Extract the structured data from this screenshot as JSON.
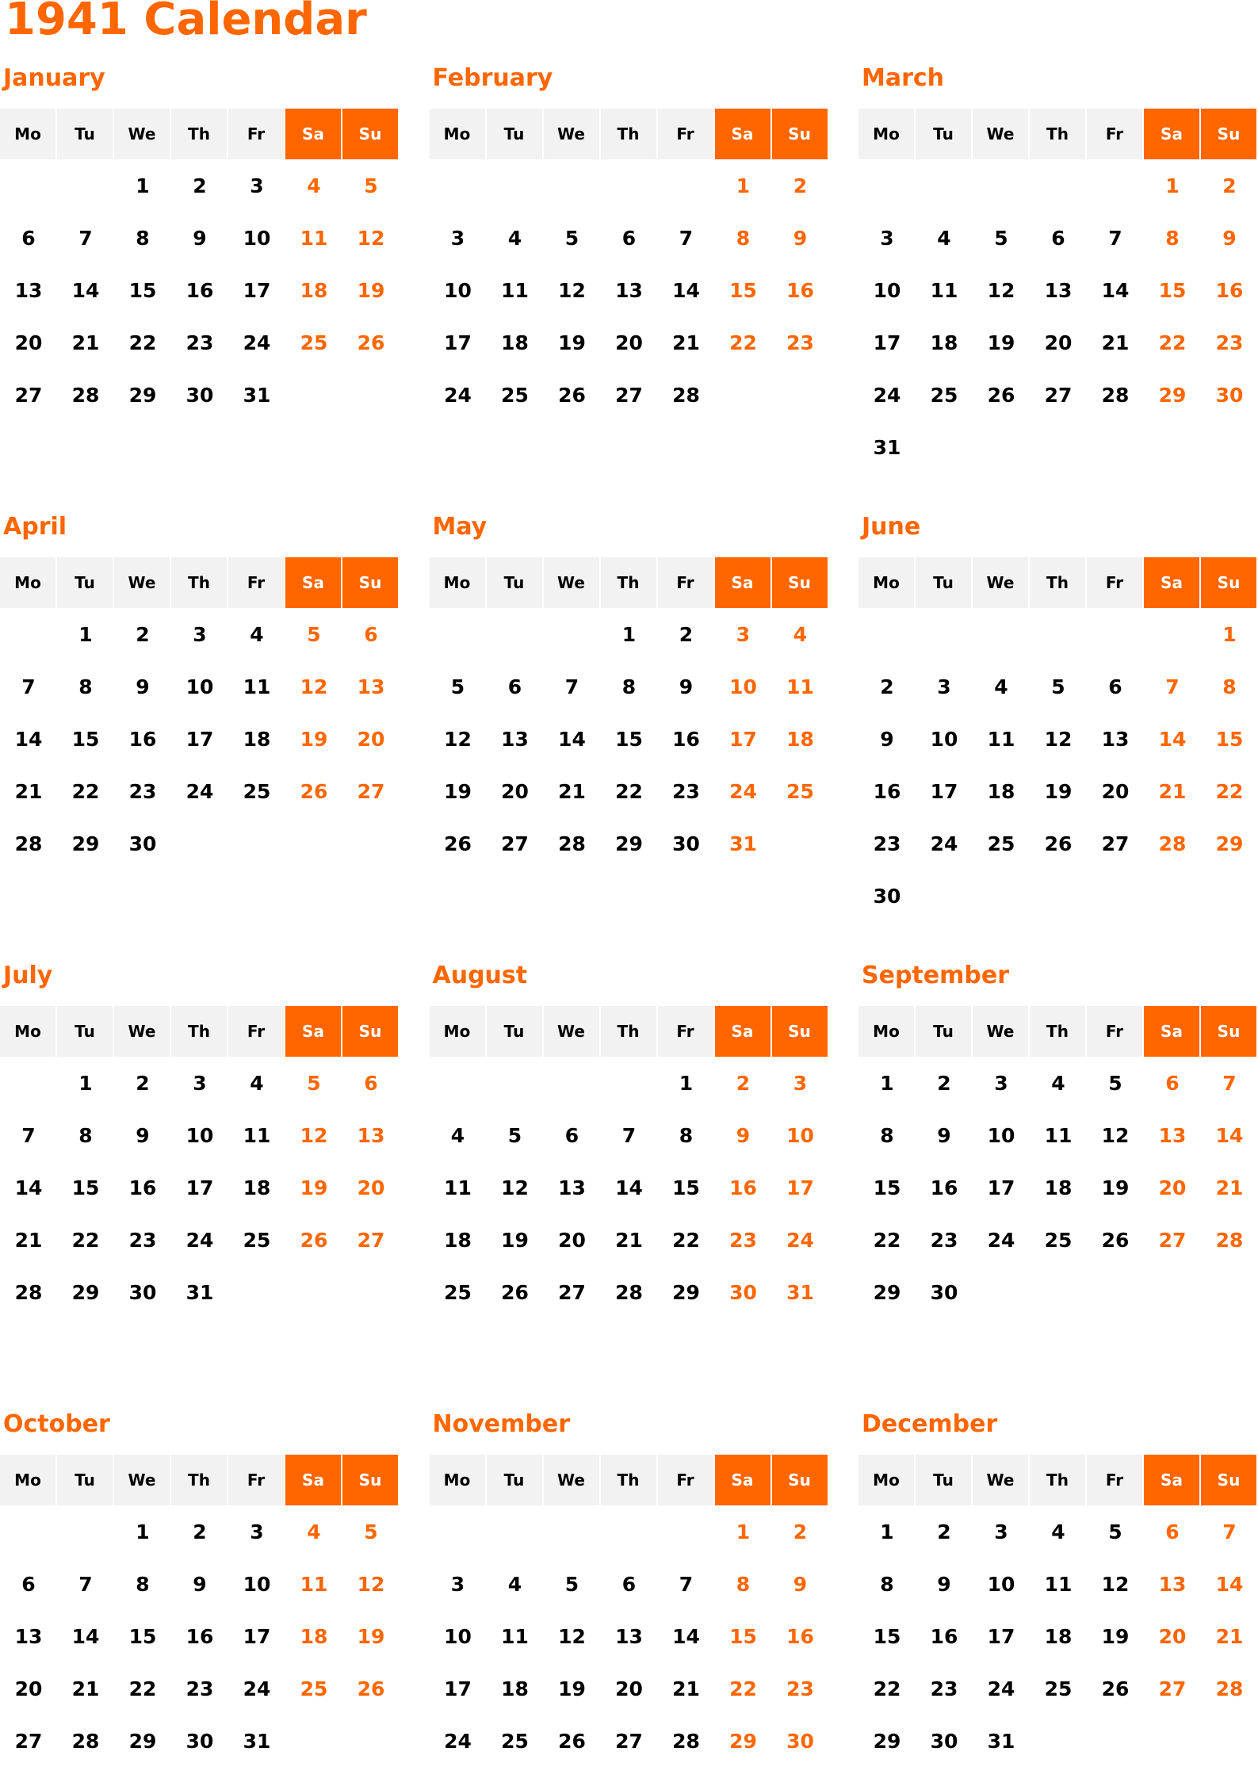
{
  "title": "1941 Calendar",
  "colors": {
    "accent": "#FF6600",
    "header_bg": "#F2F2F2",
    "text": "#000000"
  },
  "weekdays": [
    "Mo",
    "Tu",
    "We",
    "Th",
    "Fr",
    "Sa",
    "Su"
  ],
  "months": [
    {
      "name": "January",
      "weeks": [
        [
          null,
          null,
          1,
          2,
          3,
          4,
          5
        ],
        [
          6,
          7,
          8,
          9,
          10,
          11,
          12
        ],
        [
          13,
          14,
          15,
          16,
          17,
          18,
          19
        ],
        [
          20,
          21,
          22,
          23,
          24,
          25,
          26
        ],
        [
          27,
          28,
          29,
          30,
          31
        ]
      ]
    },
    {
      "name": "February",
      "weeks": [
        [
          null,
          null,
          null,
          null,
          null,
          1,
          2
        ],
        [
          3,
          4,
          5,
          6,
          7,
          8,
          9
        ],
        [
          10,
          11,
          12,
          13,
          14,
          15,
          16
        ],
        [
          17,
          18,
          19,
          20,
          21,
          22,
          23
        ],
        [
          24,
          25,
          26,
          27,
          28
        ]
      ]
    },
    {
      "name": "March",
      "weeks": [
        [
          null,
          null,
          null,
          null,
          null,
          1,
          2
        ],
        [
          3,
          4,
          5,
          6,
          7,
          8,
          9
        ],
        [
          10,
          11,
          12,
          13,
          14,
          15,
          16
        ],
        [
          17,
          18,
          19,
          20,
          21,
          22,
          23
        ],
        [
          24,
          25,
          26,
          27,
          28,
          29,
          30
        ],
        [
          31
        ]
      ]
    },
    {
      "name": "April",
      "weeks": [
        [
          null,
          1,
          2,
          3,
          4,
          5,
          6
        ],
        [
          7,
          8,
          9,
          10,
          11,
          12,
          13
        ],
        [
          14,
          15,
          16,
          17,
          18,
          19,
          20
        ],
        [
          21,
          22,
          23,
          24,
          25,
          26,
          27
        ],
        [
          28,
          29,
          30
        ]
      ]
    },
    {
      "name": "May",
      "weeks": [
        [
          null,
          null,
          null,
          1,
          2,
          3,
          4
        ],
        [
          5,
          6,
          7,
          8,
          9,
          10,
          11
        ],
        [
          12,
          13,
          14,
          15,
          16,
          17,
          18
        ],
        [
          19,
          20,
          21,
          22,
          23,
          24,
          25
        ],
        [
          26,
          27,
          28,
          29,
          30,
          31
        ]
      ]
    },
    {
      "name": "June",
      "weeks": [
        [
          null,
          null,
          null,
          null,
          null,
          null,
          1
        ],
        [
          2,
          3,
          4,
          5,
          6,
          7,
          8
        ],
        [
          9,
          10,
          11,
          12,
          13,
          14,
          15
        ],
        [
          16,
          17,
          18,
          19,
          20,
          21,
          22
        ],
        [
          23,
          24,
          25,
          26,
          27,
          28,
          29
        ],
        [
          30
        ]
      ]
    },
    {
      "name": "July",
      "weeks": [
        [
          null,
          1,
          2,
          3,
          4,
          5,
          6
        ],
        [
          7,
          8,
          9,
          10,
          11,
          12,
          13
        ],
        [
          14,
          15,
          16,
          17,
          18,
          19,
          20
        ],
        [
          21,
          22,
          23,
          24,
          25,
          26,
          27
        ],
        [
          28,
          29,
          30,
          31
        ]
      ]
    },
    {
      "name": "August",
      "weeks": [
        [
          null,
          null,
          null,
          null,
          1,
          2,
          3
        ],
        [
          4,
          5,
          6,
          7,
          8,
          9,
          10
        ],
        [
          11,
          12,
          13,
          14,
          15,
          16,
          17
        ],
        [
          18,
          19,
          20,
          21,
          22,
          23,
          24
        ],
        [
          25,
          26,
          27,
          28,
          29,
          30,
          31
        ]
      ]
    },
    {
      "name": "September",
      "weeks": [
        [
          1,
          2,
          3,
          4,
          5,
          6,
          7
        ],
        [
          8,
          9,
          10,
          11,
          12,
          13,
          14
        ],
        [
          15,
          16,
          17,
          18,
          19,
          20,
          21
        ],
        [
          22,
          23,
          24,
          25,
          26,
          27,
          28
        ],
        [
          29,
          30
        ]
      ]
    },
    {
      "name": "October",
      "weeks": [
        [
          null,
          null,
          1,
          2,
          3,
          4,
          5
        ],
        [
          6,
          7,
          8,
          9,
          10,
          11,
          12
        ],
        [
          13,
          14,
          15,
          16,
          17,
          18,
          19
        ],
        [
          20,
          21,
          22,
          23,
          24,
          25,
          26
        ],
        [
          27,
          28,
          29,
          30,
          31
        ]
      ]
    },
    {
      "name": "November",
      "weeks": [
        [
          null,
          null,
          null,
          null,
          null,
          1,
          2
        ],
        [
          3,
          4,
          5,
          6,
          7,
          8,
          9
        ],
        [
          10,
          11,
          12,
          13,
          14,
          15,
          16
        ],
        [
          17,
          18,
          19,
          20,
          21,
          22,
          23
        ],
        [
          24,
          25,
          26,
          27,
          28,
          29,
          30
        ]
      ]
    },
    {
      "name": "December",
      "weeks": [
        [
          1,
          2,
          3,
          4,
          5,
          6,
          7
        ],
        [
          8,
          9,
          10,
          11,
          12,
          13,
          14
        ],
        [
          15,
          16,
          17,
          18,
          19,
          20,
          21
        ],
        [
          22,
          23,
          24,
          25,
          26,
          27,
          28
        ],
        [
          29,
          30,
          31
        ]
      ]
    }
  ]
}
